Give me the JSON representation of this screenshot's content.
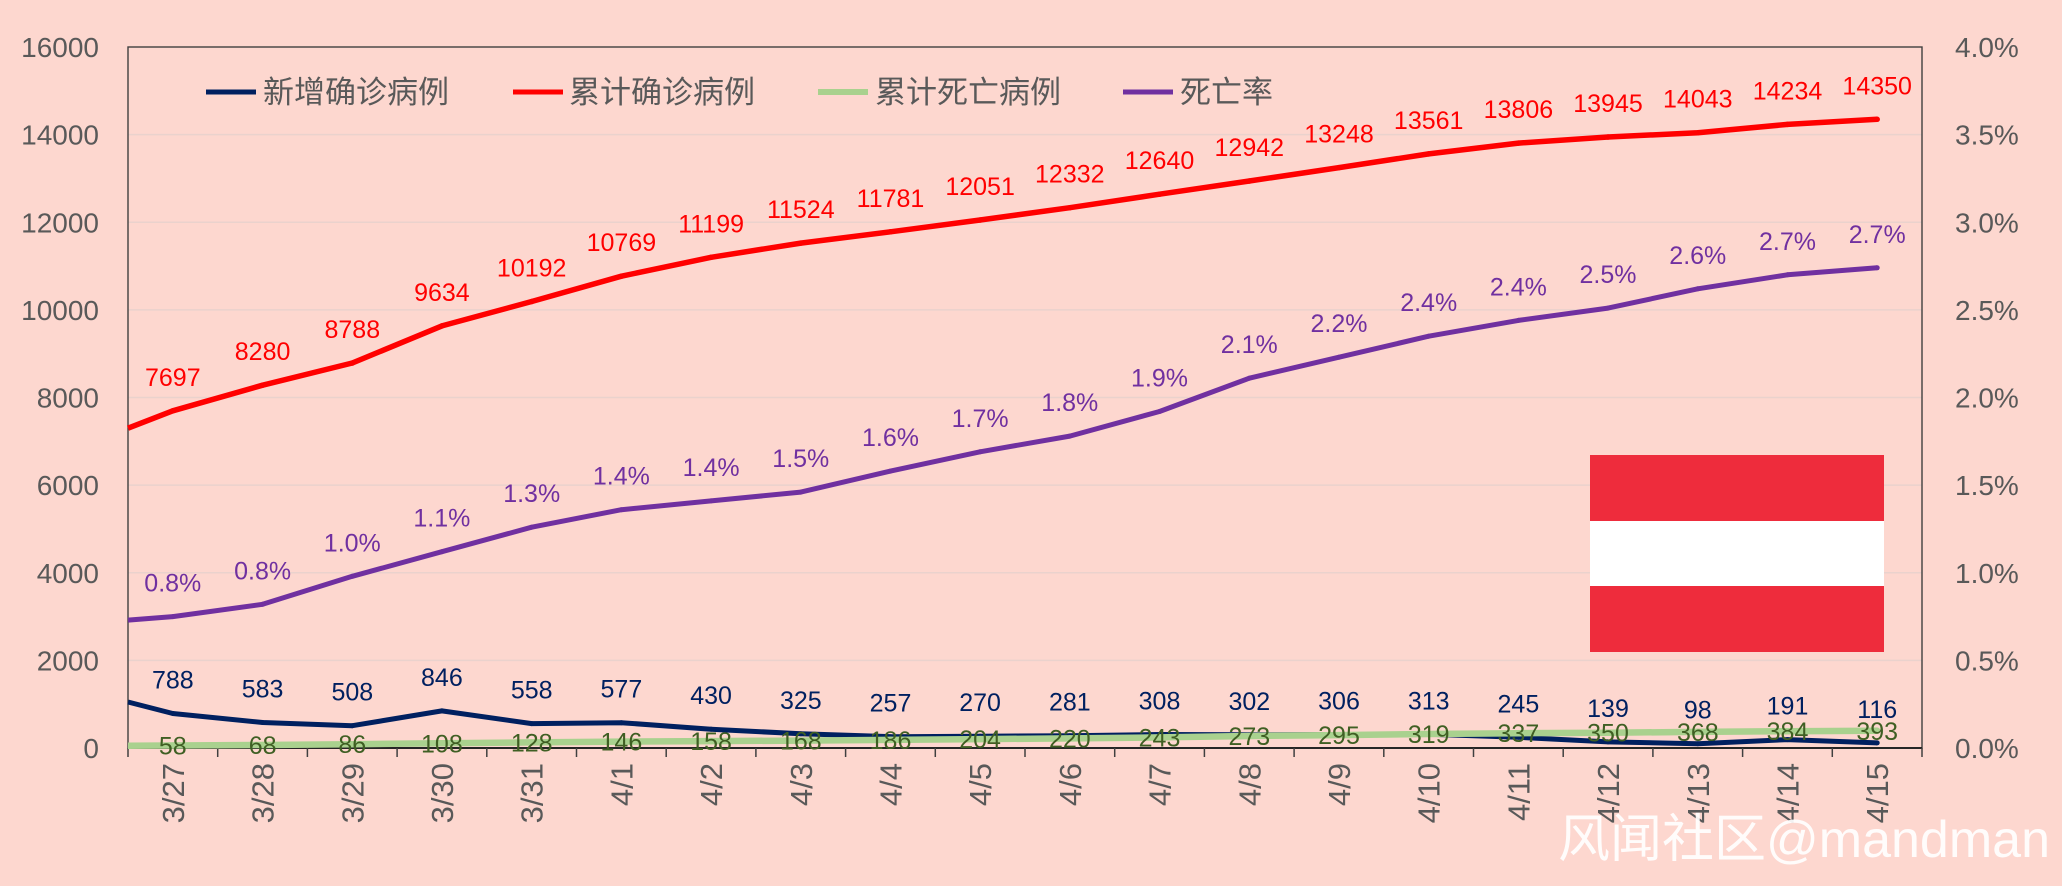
{
  "chart_data": {
    "type": "line",
    "categories": [
      "3/27",
      "3/28",
      "3/29",
      "3/30",
      "3/31",
      "4/1",
      "4/2",
      "4/3",
      "4/4",
      "4/5",
      "4/6",
      "4/7",
      "4/8",
      "4/9",
      "4/10",
      "4/11",
      "4/12",
      "4/13",
      "4/14",
      "4/15"
    ],
    "ylim": [
      0,
      16000
    ],
    "y_ticks": [
      0,
      2000,
      4000,
      6000,
      8000,
      10000,
      12000,
      14000,
      16000
    ],
    "y2lim": [
      0,
      4
    ],
    "y2_tick_values": [
      0,
      0.5,
      1,
      1.5,
      2,
      2.5,
      3,
      3.5,
      4
    ],
    "y2_tick_labels": [
      "0.0%",
      "0.5%",
      "1.0%",
      "1.5%",
      "2.0%",
      "2.5%",
      "3.0%",
      "3.5%",
      "4.0%"
    ],
    "grid": true,
    "legend": "top-left",
    "series": [
      {
        "name": "新增确诊病例",
        "axis": "left",
        "color": "#002060",
        "label_color": "#002060",
        "value_at_left_edge": 1050,
        "values": [
          788,
          583,
          508,
          846,
          558,
          577,
          430,
          325,
          257,
          270,
          281,
          308,
          302,
          306,
          313,
          245,
          139,
          98,
          191,
          116
        ]
      },
      {
        "name": "累计确诊病例",
        "axis": "left",
        "color": "#FF0000",
        "label_color": "#FF0000",
        "value_at_left_edge": 7300,
        "values": [
          7697,
          8280,
          8788,
          9634,
          10192,
          10769,
          11199,
          11524,
          11781,
          12051,
          12332,
          12640,
          12942,
          13248,
          13561,
          13806,
          13945,
          14043,
          14234,
          14350
        ]
      },
      {
        "name": "累计死亡病例",
        "axis": "left",
        "color": "#A9D18E",
        "label_color": "#3F5F23",
        "value_at_left_edge": 50,
        "values": [
          58,
          68,
          86,
          108,
          128,
          146,
          158,
          168,
          186,
          204,
          220,
          243,
          273,
          295,
          319,
          337,
          350,
          368,
          384,
          393
        ]
      },
      {
        "name": "死亡率",
        "axis": "right",
        "unit": "%",
        "color": "#7030A0",
        "label_color": "#7030A0",
        "value_at_left_edge": 0.73,
        "values": [
          0.75,
          0.82,
          0.98,
          1.12,
          1.26,
          1.36,
          1.41,
          1.46,
          1.58,
          1.69,
          1.78,
          1.92,
          2.11,
          2.23,
          2.35,
          2.44,
          2.51,
          2.62,
          2.7,
          2.74
        ],
        "data_labels": [
          "0.8%",
          "0.8%",
          "1.0%",
          "1.1%",
          "1.3%",
          "1.4%",
          "1.4%",
          "1.5%",
          "1.6%",
          "1.7%",
          "1.8%",
          "1.9%",
          "2.1%",
          "2.2%",
          "2.4%",
          "2.4%",
          "2.5%",
          "2.6%",
          "2.7%",
          "2.7%"
        ]
      }
    ]
  },
  "flag": {
    "icon": "austria-flag",
    "colors": [
      "#EE2C3C",
      "#FFFFFF",
      "#EE2C3C"
    ]
  },
  "watermark": {
    "text": "风闻社区@mandman"
  }
}
